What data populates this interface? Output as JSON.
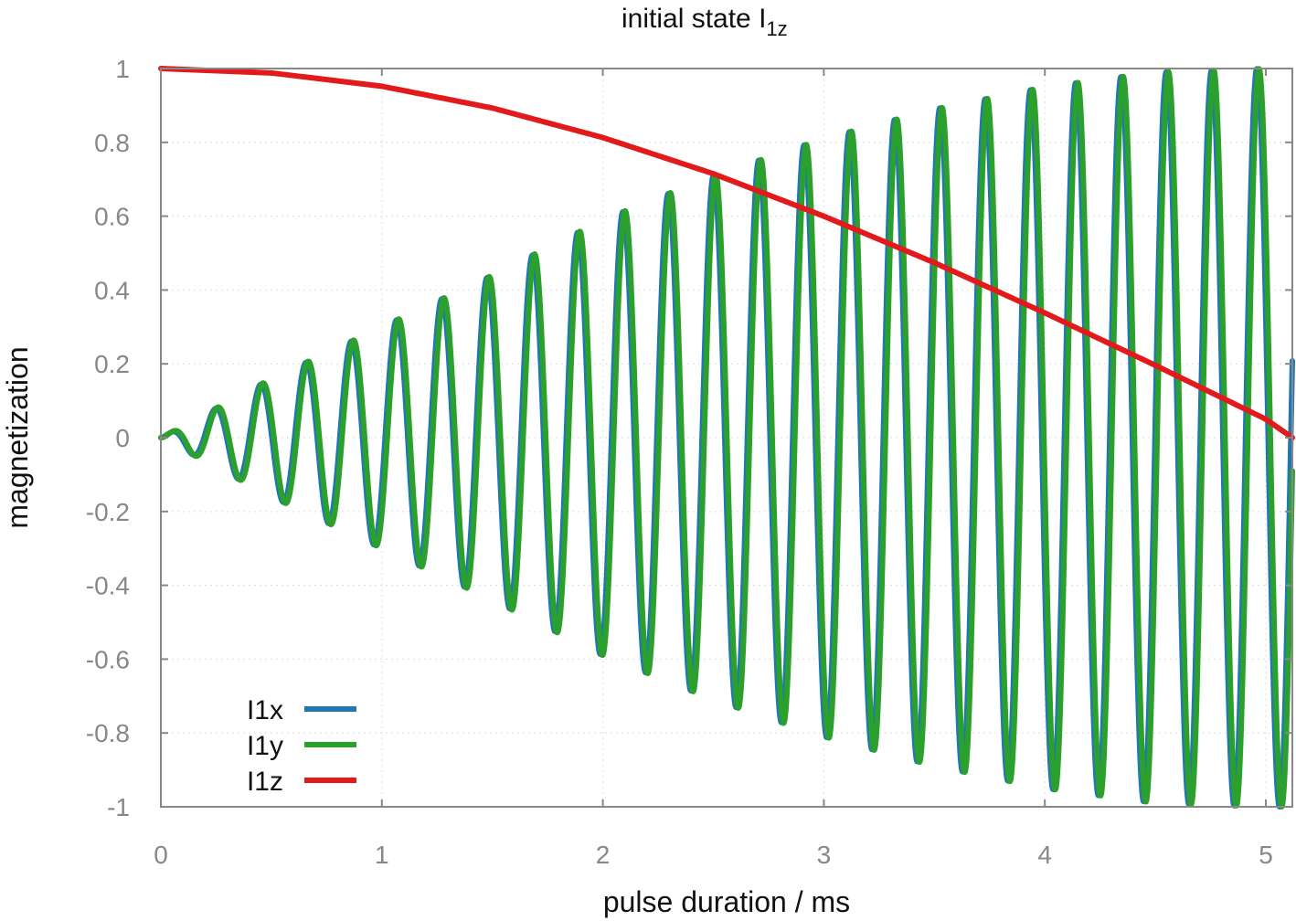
{
  "chart_data": {
    "type": "line",
    "title": "initial state I",
    "title_subscript": "1z",
    "xlabel": "pulse duration / ms",
    "ylabel": "magnetization",
    "xlim": [
      0,
      5.12
    ],
    "ylim": [
      -1,
      1
    ],
    "x_ticks": [
      0,
      1,
      2,
      3,
      4,
      5
    ],
    "x_tick_labels": [
      "0",
      "1",
      "2",
      "3",
      "4",
      "5"
    ],
    "y_ticks": [
      1,
      0.8,
      0.6,
      0.4,
      0.2,
      0,
      -0.2,
      -0.4,
      -0.6,
      -0.8,
      -1
    ],
    "y_tick_labels": [
      "1",
      "0.8",
      "0.6",
      "0.4",
      "0.2",
      "0",
      "-0.2",
      "-0.4",
      "-0.6",
      "-0.8",
      "-1"
    ],
    "grid": true,
    "legend_position": "bottom-left",
    "series": [
      {
        "name": "I1x",
        "color": "#1f77b4",
        "description_values": {
          "model": "damped-growth oscillation",
          "frequency_cycles_per_ms": 4.88,
          "phase_lead_rad": 0.3,
          "amplitude_at_x": [
            [
              0,
              0
            ],
            [
              0.5,
              0.16
            ],
            [
              1,
              0.3
            ],
            [
              1.5,
              0.44
            ],
            [
              2,
              0.59
            ],
            [
              2.5,
              0.71
            ],
            [
              3,
              0.81
            ],
            [
              3.5,
              0.89
            ],
            [
              4,
              0.95
            ],
            [
              4.5,
              0.99
            ],
            [
              5,
              1.0
            ]
          ]
        }
      },
      {
        "name": "I1y",
        "color": "#2ca02c",
        "description_values": {
          "model": "damped-growth oscillation",
          "frequency_cycles_per_ms": 4.88,
          "phase_lead_rad": 0.0,
          "amplitude_at_x": [
            [
              0,
              0
            ],
            [
              0.5,
              0.16
            ],
            [
              1,
              0.3
            ],
            [
              1.5,
              0.44
            ],
            [
              2,
              0.59
            ],
            [
              2.5,
              0.71
            ],
            [
              3,
              0.81
            ],
            [
              3.5,
              0.89
            ],
            [
              4,
              0.95
            ],
            [
              4.5,
              0.99
            ],
            [
              5,
              1.0
            ]
          ]
        }
      },
      {
        "name": "I1z",
        "color": "#e31a1c",
        "x": [
          0,
          0.5,
          1,
          1.5,
          2,
          2.5,
          3,
          3.5,
          4,
          4.5,
          5,
          5.12
        ],
        "values": [
          1.0,
          0.988,
          0.952,
          0.893,
          0.813,
          0.715,
          0.6,
          0.474,
          0.338,
          0.196,
          0.05,
          0.0
        ]
      }
    ]
  }
}
